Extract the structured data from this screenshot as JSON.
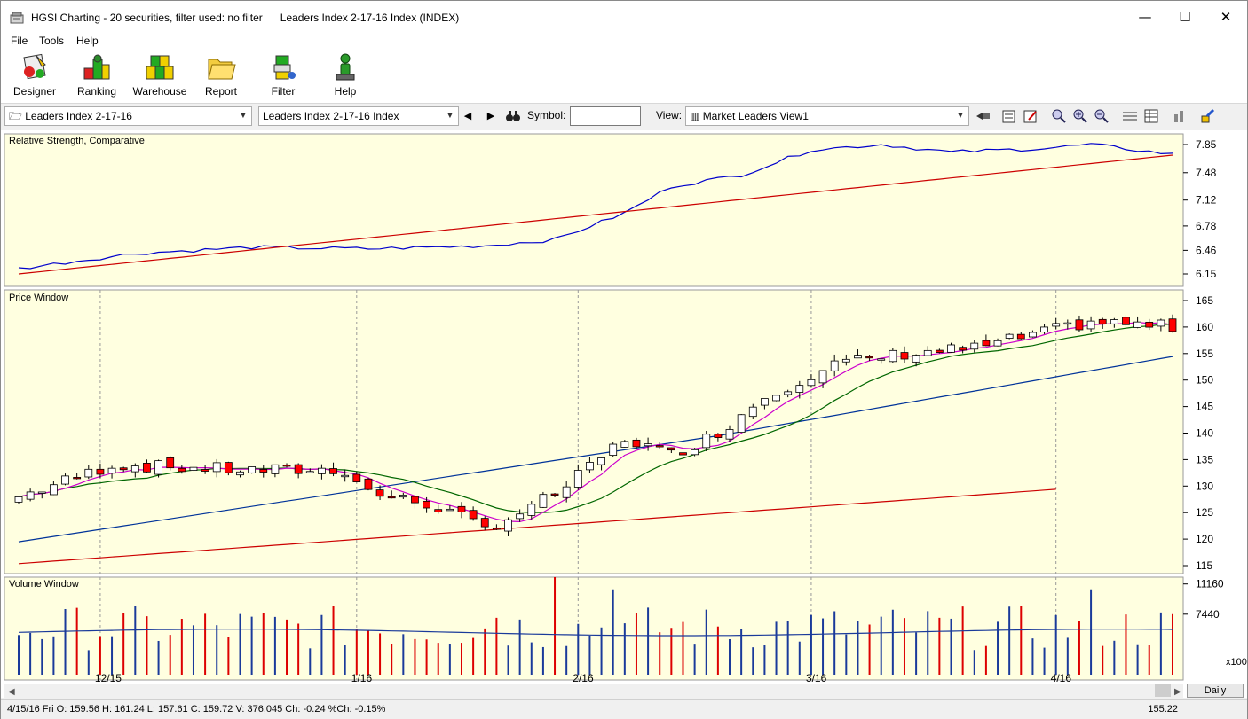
{
  "window": {
    "title": "HGSI Charting - 20 securities, filter used: no filter      Leaders Index 2-17-16 Index (INDEX)",
    "controls": {
      "minimize": "—",
      "maximize": "☐",
      "close": "✕"
    }
  },
  "menu": [
    "File",
    "Tools",
    "Help"
  ],
  "toolbar": [
    {
      "label": "Designer",
      "icon": "designer-icon"
    },
    {
      "label": "Ranking",
      "icon": "ranking-icon"
    },
    {
      "label": "Warehouse",
      "icon": "warehouse-icon"
    },
    {
      "label": "Report",
      "icon": "report-folder-icon"
    },
    {
      "label": "Filter",
      "icon": "filter-icon"
    },
    {
      "label": "Help",
      "icon": "help-person-icon"
    }
  ],
  "navbar": {
    "list_combo": "Leaders Index 2-17-16",
    "security_combo": "Leaders Index 2-17-16 Index",
    "prev": "◀",
    "next": "▶",
    "symbol_label": "Symbol:",
    "symbol_value": "",
    "view_label": "View:",
    "view_combo": "Market Leaders View1"
  },
  "panels": {
    "rs": {
      "title": "Relative Strength, Comparative",
      "ticks": [
        "7.85",
        "7.48",
        "7.12",
        "6.78",
        "6.46",
        "6.15"
      ]
    },
    "price": {
      "title": "Price Window",
      "ticks": [
        "165",
        "160",
        "155",
        "150",
        "145",
        "140",
        "135",
        "130",
        "125",
        "120",
        "115"
      ]
    },
    "volume": {
      "title": "Volume Window",
      "ticks": [
        "11160",
        "7440"
      ],
      "multiplier": "x100"
    }
  },
  "x_axis": [
    "12/15",
    "1/16",
    "2/16",
    "3/16",
    "4/16"
  ],
  "colors": {
    "panel_bg": "#ffffe0",
    "up": "#ffffff",
    "down": "#ff0000",
    "rs_line": "#0000cc",
    "rs_ma": "#cc0000",
    "ma_short": "#cc00cc",
    "ma_mid": "#006600",
    "ma_long": "#003399",
    "ma_200": "#cc0000"
  },
  "chart_data": {
    "type": "line",
    "x": [
      "12/15",
      "1/16",
      "2/16",
      "3/16",
      "4/16"
    ],
    "series": [],
    "ylim_price": [
      115,
      165
    ],
    "ylim_rs": [
      6.15,
      7.85
    ]
  },
  "scroll_button": "Daily",
  "status": {
    "text": "4/15/16 Fri O: 159.56 H: 161.24 L: 157.61 C: 159.72 V: 376,045 Ch: -0.24 %Ch: -0.15%",
    "right_value": "155.22"
  }
}
